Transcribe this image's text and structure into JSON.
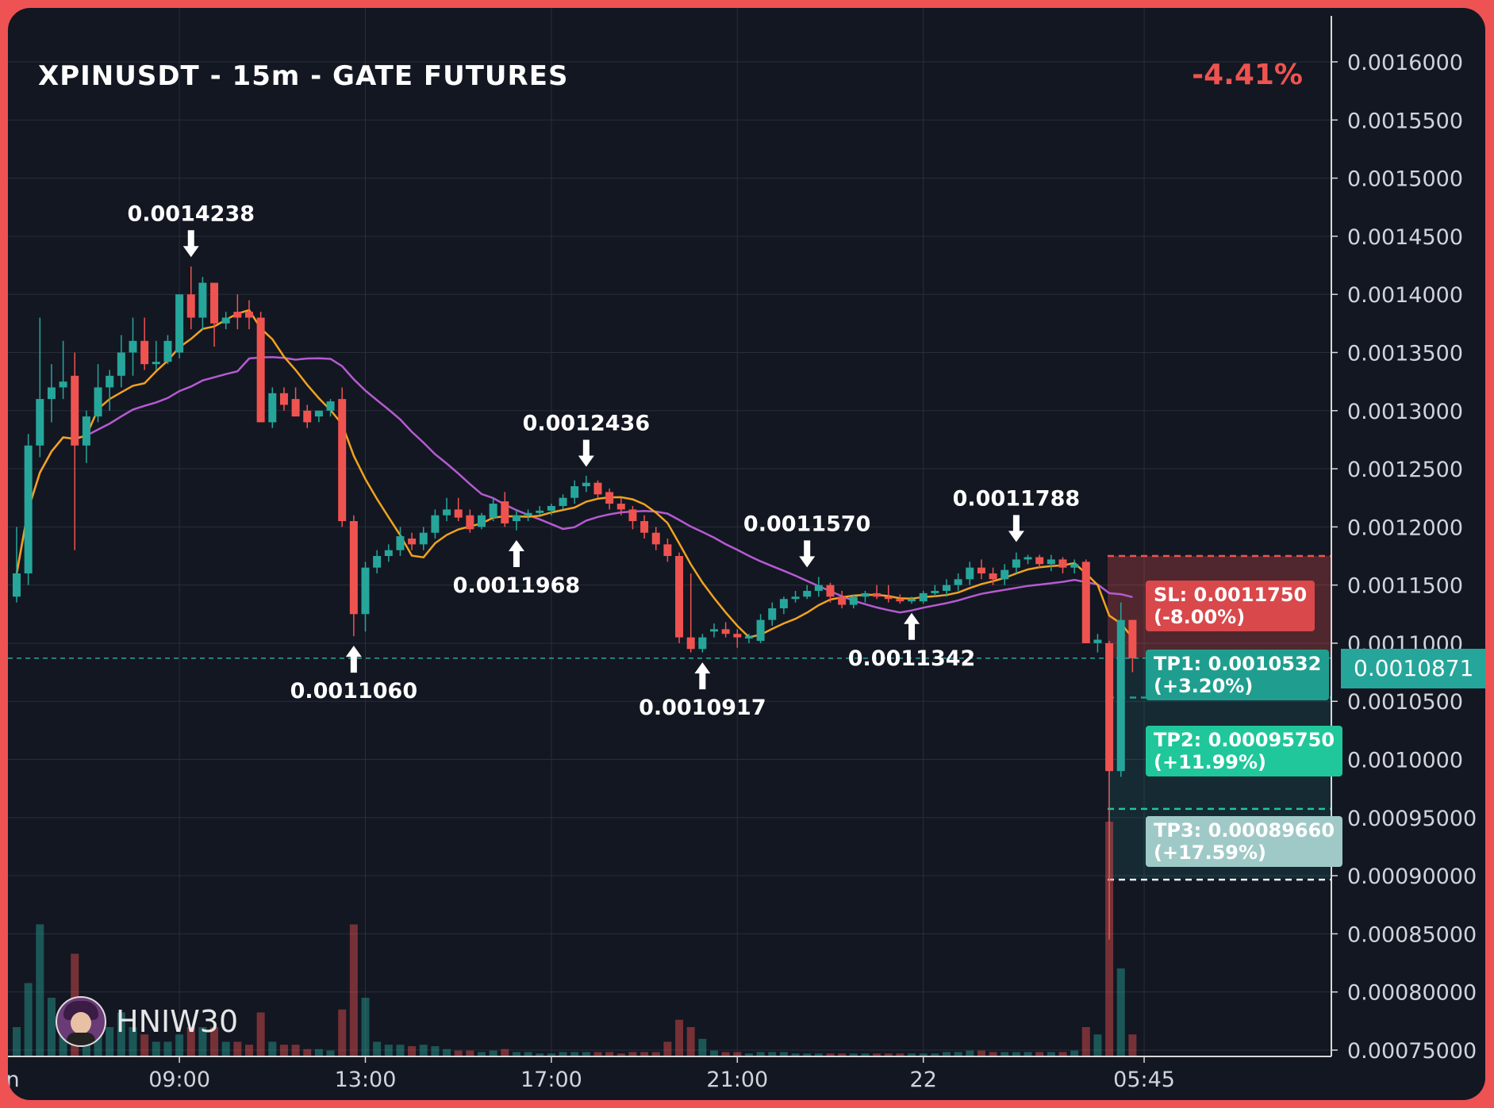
{
  "header": {
    "title": "XPINUSDT - 15m - GATE FUTURES",
    "change": "-4.41%"
  },
  "brand": {
    "name": "HNIW30",
    "icon": "avatar-icon"
  },
  "colors": {
    "background": "#131722",
    "frame": "#ee5253",
    "up": "#26a69a",
    "down": "#ef5350",
    "ma_fast": "#f0a31f",
    "ma_slow": "#b55bd1",
    "grid": "#2a2e39",
    "sl": "#d9484b",
    "tp1": "#1f9e8f",
    "tp2": "#1fc79a",
    "tp3": "#9fc9c6"
  },
  "chart_data": {
    "type": "candlestick",
    "title": "XPINUSDT - 15m - GATE FUTURES",
    "timeframe": "15m",
    "y_ticks": [
      "0.0016000",
      "0.0015500",
      "0.0015000",
      "0.0014500",
      "0.0014000",
      "0.0013500",
      "0.0013000",
      "0.0012500",
      "0.0012000",
      "0.0011500",
      "0.0011000",
      "0.0010500",
      "0.0010000",
      "0.00095000",
      "0.00090000",
      "0.00085000",
      "0.00080000",
      "0.00075000"
    ],
    "y_tick_values": [
      0.0016,
      0.00155,
      0.0015,
      0.00145,
      0.0014,
      0.00135,
      0.0013,
      0.00125,
      0.0012,
      0.00115,
      0.0011,
      0.00105,
      0.001,
      0.00095,
      0.0009,
      0.00085,
      0.0008,
      0.00075
    ],
    "ylim": [
      0.000745,
      0.001645
    ],
    "x_ticks": [
      {
        "label": "n",
        "index": -0.3
      },
      {
        "label": "09:00",
        "index": 14
      },
      {
        "label": "13:00",
        "index": 30
      },
      {
        "label": "17:00",
        "index": 46
      },
      {
        "label": "21:00",
        "index": 62
      },
      {
        "label": "22",
        "index": 78
      },
      {
        "label": "05:45",
        "index": 97
      }
    ],
    "current_price": {
      "label": "0.0010871",
      "value": 0.0010871
    },
    "candles": [
      {
        "o": 0.00114,
        "h": 0.0012,
        "l": 0.001135,
        "c": 0.00116,
        "v": 2
      },
      {
        "o": 0.00116,
        "h": 0.00128,
        "l": 0.00115,
        "c": 0.00127,
        "v": 5
      },
      {
        "o": 0.00127,
        "h": 0.00138,
        "l": 0.00126,
        "c": 0.00131,
        "v": 9
      },
      {
        "o": 0.00131,
        "h": 0.00134,
        "l": 0.00129,
        "c": 0.00132,
        "v": 4
      },
      {
        "o": 0.00132,
        "h": 0.00136,
        "l": 0.00131,
        "c": 0.001325,
        "v": 3
      },
      {
        "o": 0.00133,
        "h": 0.00135,
        "l": 0.00118,
        "c": 0.00127,
        "v": 7
      },
      {
        "o": 0.00127,
        "h": 0.0013,
        "l": 0.001255,
        "c": 0.001295,
        "v": 3
      },
      {
        "o": 0.001295,
        "h": 0.00134,
        "l": 0.00129,
        "c": 0.00132,
        "v": 2
      },
      {
        "o": 0.00132,
        "h": 0.001335,
        "l": 0.0013,
        "c": 0.00133,
        "v": 2
      },
      {
        "o": 0.00133,
        "h": 0.001365,
        "l": 0.00132,
        "c": 0.00135,
        "v": 3
      },
      {
        "o": 0.00135,
        "h": 0.00138,
        "l": 0.00133,
        "c": 0.00136,
        "v": 2
      },
      {
        "o": 0.00136,
        "h": 0.00138,
        "l": 0.001335,
        "c": 0.00134,
        "v": 1.5
      },
      {
        "o": 0.00134,
        "h": 0.00136,
        "l": 0.001335,
        "c": 0.001342,
        "v": 1
      },
      {
        "o": 0.001342,
        "h": 0.001365,
        "l": 0.00134,
        "c": 0.00136,
        "v": 1
      },
      {
        "o": 0.00135,
        "h": 0.0014,
        "l": 0.001345,
        "c": 0.0014,
        "v": 1.5
      },
      {
        "o": 0.0014,
        "h": 0.001424,
        "l": 0.00137,
        "c": 0.00138,
        "v": 2
      },
      {
        "o": 0.00138,
        "h": 0.001415,
        "l": 0.00137,
        "c": 0.00141,
        "v": 2
      },
      {
        "o": 0.00141,
        "h": 0.00141,
        "l": 0.001355,
        "c": 0.001375,
        "v": 2
      },
      {
        "o": 0.001375,
        "h": 0.001385,
        "l": 0.00137,
        "c": 0.00138,
        "v": 1
      },
      {
        "o": 0.001385,
        "h": 0.0014,
        "l": 0.00137,
        "c": 0.00138,
        "v": 1
      },
      {
        "o": 0.001385,
        "h": 0.001395,
        "l": 0.00137,
        "c": 0.00138,
        "v": 0.8
      },
      {
        "o": 0.00138,
        "h": 0.001385,
        "l": 0.00129,
        "c": 0.00129,
        "v": 3
      },
      {
        "o": 0.00129,
        "h": 0.00132,
        "l": 0.001285,
        "c": 0.001315,
        "v": 1
      },
      {
        "o": 0.001315,
        "h": 0.00132,
        "l": 0.0013,
        "c": 0.001305,
        "v": 0.8
      },
      {
        "o": 0.00131,
        "h": 0.00132,
        "l": 0.001295,
        "c": 0.001295,
        "v": 0.8
      },
      {
        "o": 0.0013,
        "h": 0.001305,
        "l": 0.001285,
        "c": 0.00129,
        "v": 0.5
      },
      {
        "o": 0.001295,
        "h": 0.0013,
        "l": 0.00129,
        "c": 0.0013,
        "v": 0.5
      },
      {
        "o": 0.0013,
        "h": 0.00131,
        "l": 0.001295,
        "c": 0.001308,
        "v": 0.4
      },
      {
        "o": 0.00131,
        "h": 0.00132,
        "l": 0.0012,
        "c": 0.001205,
        "v": 3.2
      },
      {
        "o": 0.001205,
        "h": 0.00121,
        "l": 0.001106,
        "c": 0.001125,
        "v": 9
      },
      {
        "o": 0.001125,
        "h": 0.00117,
        "l": 0.00111,
        "c": 0.001165,
        "v": 4
      },
      {
        "o": 0.001165,
        "h": 0.00118,
        "l": 0.00116,
        "c": 0.001175,
        "v": 1
      },
      {
        "o": 0.001175,
        "h": 0.001185,
        "l": 0.00117,
        "c": 0.00118,
        "v": 0.8
      },
      {
        "o": 0.00118,
        "h": 0.0012,
        "l": 0.001175,
        "c": 0.001192,
        "v": 0.8
      },
      {
        "o": 0.00119,
        "h": 0.001195,
        "l": 0.00118,
        "c": 0.001185,
        "v": 0.7
      },
      {
        "o": 0.001185,
        "h": 0.0012,
        "l": 0.00118,
        "c": 0.001195,
        "v": 0.8
      },
      {
        "o": 0.001195,
        "h": 0.001215,
        "l": 0.00119,
        "c": 0.00121,
        "v": 0.7
      },
      {
        "o": 0.00121,
        "h": 0.001225,
        "l": 0.001205,
        "c": 0.001215,
        "v": 0.5
      },
      {
        "o": 0.001215,
        "h": 0.001225,
        "l": 0.001205,
        "c": 0.001208,
        "v": 0.4
      },
      {
        "o": 0.00121,
        "h": 0.001215,
        "l": 0.001195,
        "c": 0.001198,
        "v": 0.4
      },
      {
        "o": 0.0012,
        "h": 0.001212,
        "l": 0.001198,
        "c": 0.00121,
        "v": 0.3
      },
      {
        "o": 0.001208,
        "h": 0.001225,
        "l": 0.001205,
        "c": 0.00122,
        "v": 0.4
      },
      {
        "o": 0.001222,
        "h": 0.00123,
        "l": 0.0012,
        "c": 0.001203,
        "v": 0.5
      },
      {
        "o": 0.001205,
        "h": 0.001215,
        "l": 0.001197,
        "c": 0.00121,
        "v": 0.3
      },
      {
        "o": 0.00121,
        "h": 0.001215,
        "l": 0.001205,
        "c": 0.001212,
        "v": 0.3
      },
      {
        "o": 0.001212,
        "h": 0.001218,
        "l": 0.00121,
        "c": 0.001214,
        "v": 0.2
      },
      {
        "o": 0.001214,
        "h": 0.00122,
        "l": 0.00121,
        "c": 0.001218,
        "v": 0.2
      },
      {
        "o": 0.001218,
        "h": 0.001228,
        "l": 0.001215,
        "c": 0.001225,
        "v": 0.3
      },
      {
        "o": 0.001225,
        "h": 0.00124,
        "l": 0.00122,
        "c": 0.001235,
        "v": 0.3
      },
      {
        "o": 0.001235,
        "h": 0.001244,
        "l": 0.00123,
        "c": 0.001238,
        "v": 0.3
      },
      {
        "o": 0.001238,
        "h": 0.00124,
        "l": 0.001225,
        "c": 0.001228,
        "v": 0.3
      },
      {
        "o": 0.00123,
        "h": 0.001233,
        "l": 0.001215,
        "c": 0.00122,
        "v": 0.3
      },
      {
        "o": 0.00122,
        "h": 0.001225,
        "l": 0.00121,
        "c": 0.001215,
        "v": 0.2
      },
      {
        "o": 0.001215,
        "h": 0.001218,
        "l": 0.001198,
        "c": 0.001205,
        "v": 0.3
      },
      {
        "o": 0.001205,
        "h": 0.00121,
        "l": 0.00119,
        "c": 0.001195,
        "v": 0.3
      },
      {
        "o": 0.001195,
        "h": 0.0012,
        "l": 0.00118,
        "c": 0.001185,
        "v": 0.3
      },
      {
        "o": 0.001185,
        "h": 0.00119,
        "l": 0.00117,
        "c": 0.001175,
        "v": 1
      },
      {
        "o": 0.001175,
        "h": 0.001178,
        "l": 0.0011,
        "c": 0.001105,
        "v": 2.5
      },
      {
        "o": 0.001105,
        "h": 0.00116,
        "l": 0.001092,
        "c": 0.001095,
        "v": 2
      },
      {
        "o": 0.001095,
        "h": 0.001108,
        "l": 0.001092,
        "c": 0.001105,
        "v": 1.2
      },
      {
        "o": 0.00111,
        "h": 0.001117,
        "l": 0.001105,
        "c": 0.001112,
        "v": 0.4
      },
      {
        "o": 0.001112,
        "h": 0.001118,
        "l": 0.001105,
        "c": 0.001108,
        "v": 0.3
      },
      {
        "o": 0.001108,
        "h": 0.001112,
        "l": 0.001096,
        "c": 0.001105,
        "v": 0.3
      },
      {
        "o": 0.001104,
        "h": 0.001108,
        "l": 0.0011,
        "c": 0.001106,
        "v": 0.2
      },
      {
        "o": 0.001102,
        "h": 0.001125,
        "l": 0.0011,
        "c": 0.00112,
        "v": 0.3
      },
      {
        "o": 0.00112,
        "h": 0.001135,
        "l": 0.001115,
        "c": 0.00113,
        "v": 0.3
      },
      {
        "o": 0.00113,
        "h": 0.00114,
        "l": 0.001125,
        "c": 0.001138,
        "v": 0.3
      },
      {
        "o": 0.001138,
        "h": 0.001145,
        "l": 0.001135,
        "c": 0.00114,
        "v": 0.2
      },
      {
        "o": 0.00114,
        "h": 0.00115,
        "l": 0.001138,
        "c": 0.001145,
        "v": 0.2
      },
      {
        "o": 0.001145,
        "h": 0.001157,
        "l": 0.00114,
        "c": 0.00115,
        "v": 0.2
      },
      {
        "o": 0.00115,
        "h": 0.001152,
        "l": 0.001135,
        "c": 0.00114,
        "v": 0.2
      },
      {
        "o": 0.00114,
        "h": 0.001145,
        "l": 0.00113,
        "c": 0.001133,
        "v": 0.2
      },
      {
        "o": 0.001133,
        "h": 0.001142,
        "l": 0.00113,
        "c": 0.00114,
        "v": 0.2
      },
      {
        "o": 0.00114,
        "h": 0.001145,
        "l": 0.001135,
        "c": 0.001143,
        "v": 0.2
      },
      {
        "o": 0.001143,
        "h": 0.00115,
        "l": 0.001138,
        "c": 0.00114,
        "v": 0.2
      },
      {
        "o": 0.00114,
        "h": 0.00115,
        "l": 0.001135,
        "c": 0.001138,
        "v": 0.2
      },
      {
        "o": 0.001138,
        "h": 0.001142,
        "l": 0.001134,
        "c": 0.001136,
        "v": 0.2
      },
      {
        "o": 0.001136,
        "h": 0.00114,
        "l": 0.001134,
        "c": 0.001138,
        "v": 0.2
      },
      {
        "o": 0.001136,
        "h": 0.001145,
        "l": 0.001134,
        "c": 0.001143,
        "v": 0.2
      },
      {
        "o": 0.001143,
        "h": 0.00115,
        "l": 0.00114,
        "c": 0.001145,
        "v": 0.2
      },
      {
        "o": 0.001145,
        "h": 0.001155,
        "l": 0.00114,
        "c": 0.00115,
        "v": 0.3
      },
      {
        "o": 0.00115,
        "h": 0.00116,
        "l": 0.001145,
        "c": 0.001155,
        "v": 0.3
      },
      {
        "o": 0.001155,
        "h": 0.00117,
        "l": 0.00115,
        "c": 0.001165,
        "v": 0.4
      },
      {
        "o": 0.001165,
        "h": 0.001172,
        "l": 0.001155,
        "c": 0.00116,
        "v": 0.4
      },
      {
        "o": 0.00116,
        "h": 0.001165,
        "l": 0.00115,
        "c": 0.001155,
        "v": 0.3
      },
      {
        "o": 0.001155,
        "h": 0.001168,
        "l": 0.00115,
        "c": 0.001163,
        "v": 0.3
      },
      {
        "o": 0.001165,
        "h": 0.001178,
        "l": 0.00116,
        "c": 0.001172,
        "v": 0.3
      },
      {
        "o": 0.001172,
        "h": 0.001176,
        "l": 0.001168,
        "c": 0.001174,
        "v": 0.3
      },
      {
        "o": 0.001174,
        "h": 0.001176,
        "l": 0.001165,
        "c": 0.001168,
        "v": 0.3
      },
      {
        "o": 0.001168,
        "h": 0.001176,
        "l": 0.001162,
        "c": 0.001172,
        "v": 0.3
      },
      {
        "o": 0.001172,
        "h": 0.001174,
        "l": 0.00116,
        "c": 0.001165,
        "v": 0.3
      },
      {
        "o": 0.001165,
        "h": 0.001172,
        "l": 0.00116,
        "c": 0.001168,
        "v": 0.4
      },
      {
        "o": 0.00117,
        "h": 0.001172,
        "l": 0.0011,
        "c": 0.0011,
        "v": 2
      },
      {
        "o": 0.0011,
        "h": 0.001108,
        "l": 0.001092,
        "c": 0.001103,
        "v": 1.5
      },
      {
        "o": 0.0011,
        "h": 0.001102,
        "l": 0.000845,
        "c": 0.00099,
        "v": 16
      },
      {
        "o": 0.00099,
        "h": 0.001135,
        "l": 0.000985,
        "c": 0.00112,
        "v": 6
      },
      {
        "o": 0.00112,
        "h": 0.00112,
        "l": 0.001075,
        "c": 0.001087,
        "v": 1.5
      }
    ],
    "ma_fast_label": "",
    "ma_slow_label": "",
    "annotations": [
      {
        "text": "0.0014238",
        "index": 15,
        "value": 0.0014238,
        "dir": "high"
      },
      {
        "text": "0.0011060",
        "index": 29,
        "value": 0.001106,
        "dir": "low"
      },
      {
        "text": "0.0011968",
        "index": 43,
        "value": 0.0011968,
        "dir": "low"
      },
      {
        "text": "0.0012436",
        "index": 49,
        "value": 0.0012436,
        "dir": "high"
      },
      {
        "text": "0.0010917",
        "index": 59,
        "value": 0.0010917,
        "dir": "low"
      },
      {
        "text": "0.0011570",
        "index": 68,
        "value": 0.001157,
        "dir": "high"
      },
      {
        "text": "0.0011342",
        "index": 77,
        "value": 0.0011342,
        "dir": "low"
      },
      {
        "text": "0.0011788",
        "index": 86,
        "value": 0.0011788,
        "dir": "high"
      }
    ],
    "levels": {
      "sl": {
        "label": "SL: 0.0011750",
        "pct": "(-8.00%)",
        "value": 0.001175
      },
      "tp1": {
        "label": "TP1: 0.0010532",
        "pct": "(+3.20%)",
        "value": 0.0010532
      },
      "tp2": {
        "label": "TP2: 0.00095750",
        "pct": "(+11.99%)",
        "value": 0.0009575
      },
      "tp3": {
        "label": "TP3: 0.00089660",
        "pct": "(+17.59%)",
        "value": 0.0008966
      }
    }
  }
}
